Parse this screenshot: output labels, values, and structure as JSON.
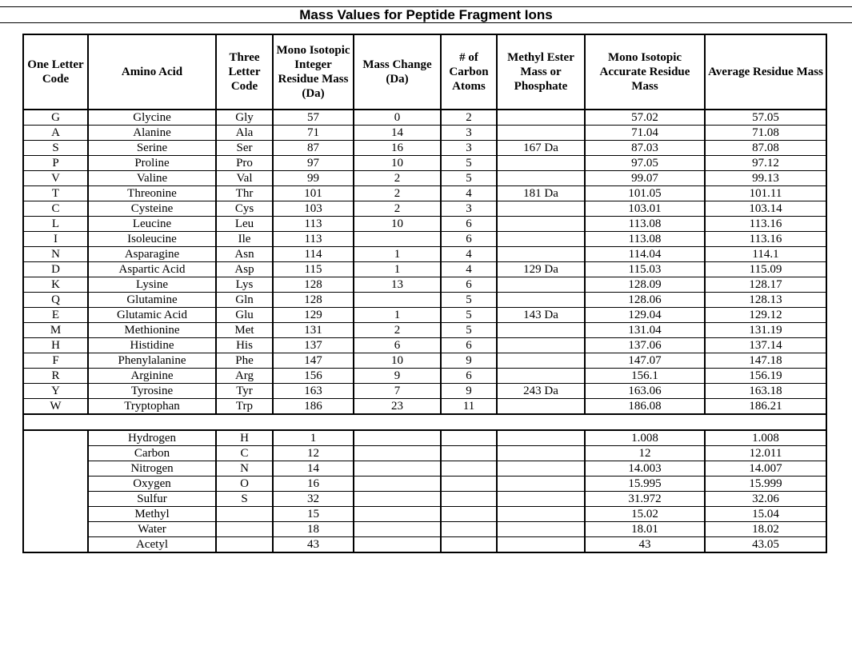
{
  "title": "Mass Values for Peptide Fragment Ions",
  "headers": {
    "one_letter": "One Letter Code",
    "amino_acid": "Amino Acid",
    "three_letter": "Three Letter Code",
    "mono_integer": "Mono Isotopic Integer Residue Mass (Da)",
    "mass_change": "Mass Change (Da)",
    "carbon_atoms": "# of Carbon Atoms",
    "methyl_ester": "Methyl Ester Mass or Phosphate",
    "mono_accurate": "Mono Isotopic Accurate Residue Mass",
    "average": "Average Residue Mass"
  },
  "rows": [
    {
      "code": "G",
      "name": "Glycine",
      "three": "Gly",
      "integer": "57",
      "change": "0",
      "carbon": "2",
      "ester": "",
      "accurate": "57.02",
      "average": "57.05"
    },
    {
      "code": "A",
      "name": "Alanine",
      "three": "Ala",
      "integer": "71",
      "change": "14",
      "carbon": "3",
      "ester": "",
      "accurate": "71.04",
      "average": "71.08"
    },
    {
      "code": "S",
      "name": "Serine",
      "three": "Ser",
      "integer": "87",
      "change": "16",
      "carbon": "3",
      "ester": "167 Da",
      "accurate": "87.03",
      "average": "87.08"
    },
    {
      "code": "P",
      "name": "Proline",
      "three": "Pro",
      "integer": "97",
      "change": "10",
      "carbon": "5",
      "ester": "",
      "accurate": "97.05",
      "average": "97.12"
    },
    {
      "code": "V",
      "name": "Valine",
      "three": "Val",
      "integer": "99",
      "change": "2",
      "carbon": "5",
      "ester": "",
      "accurate": "99.07",
      "average": "99.13"
    },
    {
      "code": "T",
      "name": "Threonine",
      "three": "Thr",
      "integer": "101",
      "change": "2",
      "carbon": "4",
      "ester": "181 Da",
      "accurate": "101.05",
      "average": "101.11"
    },
    {
      "code": "C",
      "name": "Cysteine",
      "three": "Cys",
      "integer": "103",
      "change": "2",
      "carbon": "3",
      "ester": "",
      "accurate": "103.01",
      "average": "103.14"
    },
    {
      "code": "L",
      "name": "Leucine",
      "three": "Leu",
      "integer": "113",
      "change": "10",
      "carbon": "6",
      "ester": "",
      "accurate": "113.08",
      "average": "113.16"
    },
    {
      "code": "I",
      "name": "Isoleucine",
      "three": "Ile",
      "integer": "113",
      "change": "",
      "carbon": "6",
      "ester": "",
      "accurate": "113.08",
      "average": "113.16"
    },
    {
      "code": "N",
      "name": "Asparagine",
      "three": "Asn",
      "integer": "114",
      "change": "1",
      "carbon": "4",
      "ester": "",
      "accurate": "114.04",
      "average": "114.1"
    },
    {
      "code": "D",
      "name": "Aspartic Acid",
      "three": "Asp",
      "integer": "115",
      "change": "1",
      "carbon": "4",
      "ester": "129 Da",
      "accurate": "115.03",
      "average": "115.09"
    },
    {
      "code": "K",
      "name": "Lysine",
      "three": "Lys",
      "integer": "128",
      "change": "13",
      "carbon": "6",
      "ester": "",
      "accurate": "128.09",
      "average": "128.17"
    },
    {
      "code": "Q",
      "name": "Glutamine",
      "three": "Gln",
      "integer": "128",
      "change": "",
      "carbon": "5",
      "ester": "",
      "accurate": "128.06",
      "average": "128.13"
    },
    {
      "code": "E",
      "name": "Glutamic Acid",
      "three": "Glu",
      "integer": "129",
      "change": "1",
      "carbon": "5",
      "ester": "143 Da",
      "accurate": "129.04",
      "average": "129.12"
    },
    {
      "code": "M",
      "name": "Methionine",
      "three": "Met",
      "integer": "131",
      "change": "2",
      "carbon": "5",
      "ester": "",
      "accurate": "131.04",
      "average": "131.19"
    },
    {
      "code": "H",
      "name": "Histidine",
      "three": "His",
      "integer": "137",
      "change": "6",
      "carbon": "6",
      "ester": "",
      "accurate": "137.06",
      "average": "137.14"
    },
    {
      "code": "F",
      "name": "Phenylalanine",
      "three": "Phe",
      "integer": "147",
      "change": "10",
      "carbon": "9",
      "ester": "",
      "accurate": "147.07",
      "average": "147.18"
    },
    {
      "code": "R",
      "name": "Arginine",
      "three": "Arg",
      "integer": "156",
      "change": "9",
      "carbon": "6",
      "ester": "",
      "accurate": "156.1",
      "average": "156.19"
    },
    {
      "code": "Y",
      "name": "Tyrosine",
      "three": "Tyr",
      "integer": "163",
      "change": "7",
      "carbon": "9",
      "ester": "243 Da",
      "accurate": "163.06",
      "average": "163.18"
    },
    {
      "code": "W",
      "name": "Tryptophan",
      "three": "Trp",
      "integer": "186",
      "change": "23",
      "carbon": "11",
      "ester": "",
      "accurate": "186.08",
      "average": "186.21"
    }
  ],
  "elements": [
    {
      "name": "Hydrogen",
      "symbol": "H",
      "integer": "1",
      "accurate": "1.008",
      "average": "1.008"
    },
    {
      "name": "Carbon",
      "symbol": "C",
      "integer": "12",
      "accurate": "12",
      "average": "12.011"
    },
    {
      "name": "Nitrogen",
      "symbol": "N",
      "integer": "14",
      "accurate": "14.003",
      "average": "14.007"
    },
    {
      "name": "Oxygen",
      "symbol": "O",
      "integer": "16",
      "accurate": "15.995",
      "average": "15.999"
    },
    {
      "name": "Sulfur",
      "symbol": "S",
      "integer": "32",
      "accurate": "31.972",
      "average": "32.06"
    },
    {
      "name": "Methyl",
      "symbol": "",
      "integer": "15",
      "accurate": "15.02",
      "average": "15.04"
    },
    {
      "name": "Water",
      "symbol": "",
      "integer": "18",
      "accurate": "18.01",
      "average": "18.02"
    },
    {
      "name": "Acetyl",
      "symbol": "",
      "integer": "43",
      "accurate": "43",
      "average": "43.05"
    }
  ]
}
